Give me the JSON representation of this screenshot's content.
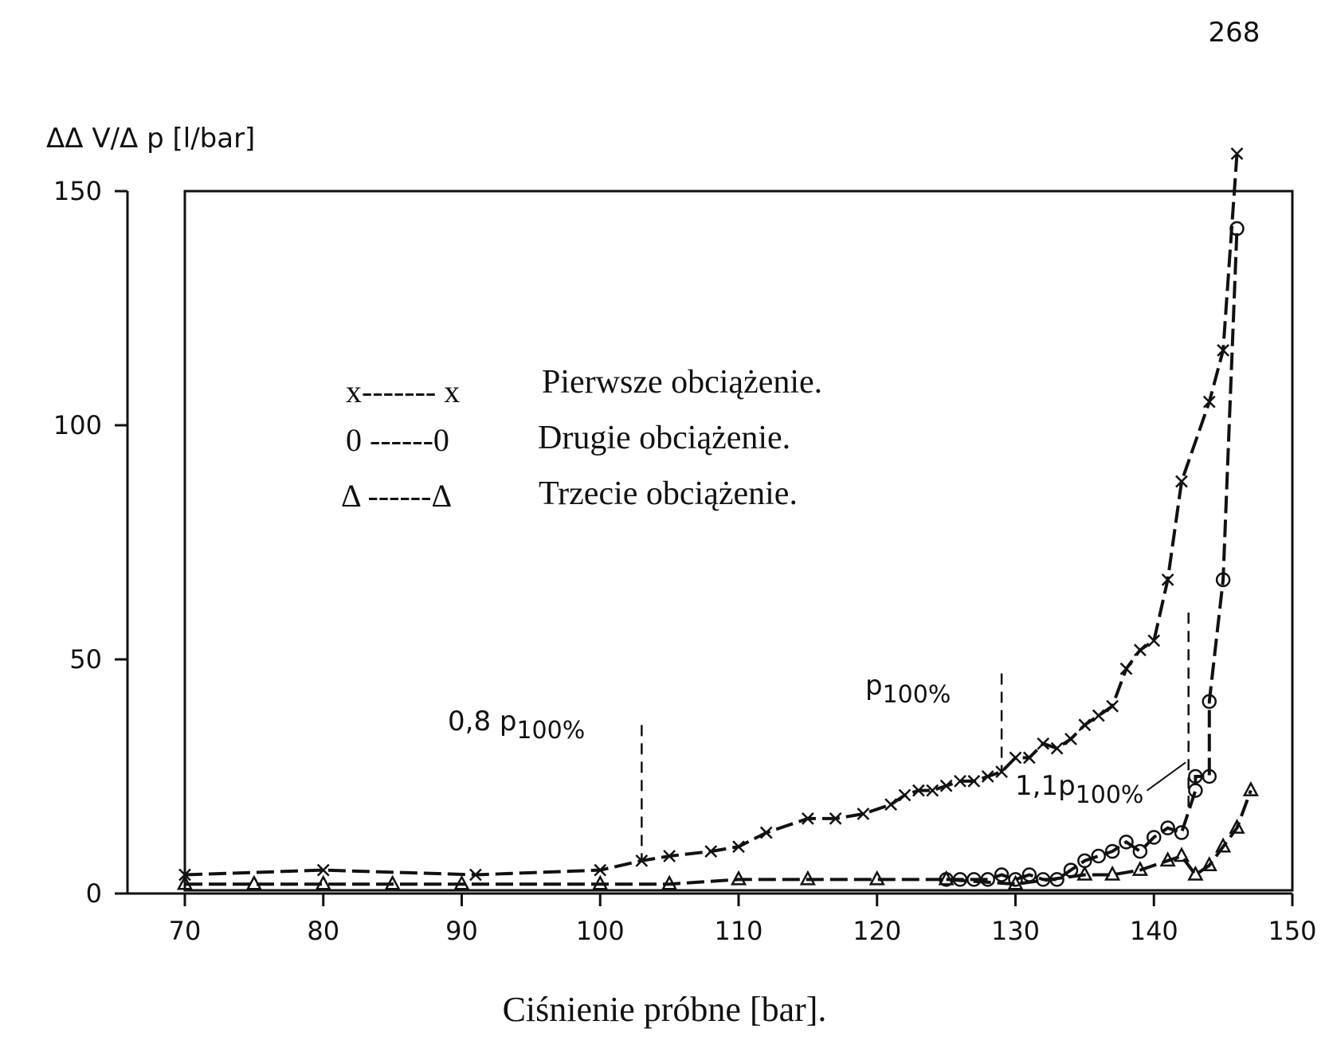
{
  "chart_data": {
    "type": "line",
    "ylabel": "ΔΔ V/Δ p [l/bar]",
    "xlabel": "Ciśnienie próbne [bar].",
    "xlim": [
      70,
      150
    ],
    "ylim": [
      0,
      150
    ],
    "xticks": [
      70,
      80,
      90,
      100,
      110,
      120,
      130,
      140,
      150
    ],
    "yticks": [
      0,
      50,
      100,
      150
    ],
    "grid": false,
    "legend_position": "upper-center",
    "legend": [
      {
        "symbol": "x------- x",
        "label": "Pierwsze obciążenie."
      },
      {
        "symbol": "0 ------0",
        "label": "Drugie obciążenie."
      },
      {
        "symbol": "Δ ------Δ",
        "label": "Trzecie obciążenie."
      }
    ],
    "series": [
      {
        "marker": "x",
        "x": [
          70,
          80,
          91,
          100,
          103,
          105,
          108,
          110,
          112,
          115,
          117,
          119,
          121,
          122,
          123,
          124,
          125,
          126,
          127,
          128,
          129,
          130,
          131,
          132,
          133,
          134,
          135,
          136,
          137,
          138,
          139,
          140,
          141,
          142,
          144,
          145,
          146
        ],
        "y": [
          4,
          5,
          4,
          5,
          7,
          8,
          9,
          10,
          13,
          16,
          16,
          17,
          19,
          21,
          22,
          22,
          23,
          24,
          24,
          25,
          26,
          29,
          29,
          32,
          31,
          33,
          36,
          38,
          40,
          48,
          52,
          54,
          67,
          88,
          105,
          116,
          158
        ]
      },
      {
        "marker": "o",
        "x": [
          125,
          126,
          127,
          128,
          129,
          130,
          131,
          132,
          133,
          134,
          135,
          136,
          137,
          138,
          139,
          140,
          141,
          142,
          143,
          143,
          144,
          144,
          145,
          146
        ],
        "y": [
          3,
          3,
          3,
          3,
          4,
          3,
          4,
          3,
          3,
          5,
          7,
          8,
          9,
          11,
          9,
          12,
          14,
          13,
          22,
          25,
          25,
          41,
          67,
          142
        ]
      },
      {
        "marker": "triangle",
        "x": [
          70,
          75,
          80,
          85,
          90,
          100,
          105,
          110,
          115,
          120,
          125,
          130,
          135,
          137,
          139,
          141,
          142,
          143,
          144,
          145,
          146,
          147
        ],
        "y": [
          2,
          2,
          2,
          2,
          2,
          2,
          2,
          3,
          3,
          3,
          3,
          2,
          4,
          4,
          5,
          7,
          8,
          4,
          6,
          10,
          14,
          22
        ]
      }
    ],
    "annotations": [
      {
        "text": "268",
        "x": 146.3,
        "y": 168
      },
      {
        "text": "0,8 p",
        "sub": "100%",
        "x": 103,
        "y": 38
      },
      {
        "text": "p",
        "sub": "100%",
        "x": 129,
        "y": 42
      },
      {
        "text": "1,1p",
        "sub": "100%",
        "x": 142.5,
        "y": 20
      }
    ],
    "reference_lines": [
      {
        "x": 103,
        "label": "0,8 p100%"
      },
      {
        "x": 129,
        "label": "p100%"
      },
      {
        "x": 142.5,
        "label": "1,1p100%"
      }
    ]
  }
}
